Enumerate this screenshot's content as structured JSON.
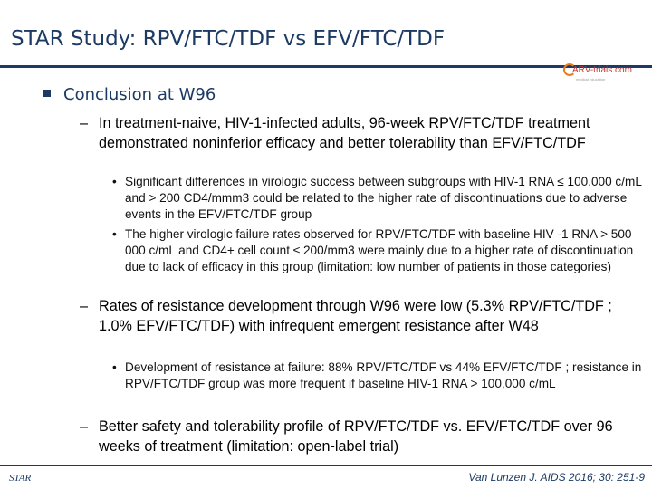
{
  "slide": {
    "title": "STAR Study: RPV/FTC/TDF vs EFV/FTC/TDF",
    "logo_text": "ARV-trials.com",
    "logo_tagline": "medical education",
    "section_heading": "Conclusion at W96",
    "points": [
      {
        "text": "In treatment-naive, HIV-1-infected adults, 96-week RPV/FTC/TDF treatment demonstrated noninferior efficacy and better tolerability than EFV/FTC/TDF",
        "subpoints": [
          "Significant differences in virologic success between subgroups with HIV-1 RNA ≤ 100,000 c/mL and > 200 CD4/mmm3 could be related to the higher rate of discontinuations due to adverse events in the EFV/FTC/TDF group",
          "The higher virologic failure rates observed for RPV/FTC/TDF with baseline HIV -1 RNA > 500 000 c/mL and CD4+ cell count ≤ 200/mm3 were mainly due to a higher rate of discontinuation due to lack of efficacy in this group (limitation: low number of patients in those categories)"
        ]
      },
      {
        "text": "Rates of resistance development through W96 were low (5.3% RPV/FTC/TDF ; 1.0% EFV/FTC/TDF) with infrequent emergent resistance after W48",
        "subpoints": [
          "Development of resistance at failure: 88% RPV/FTC/TDF vs 44% EFV/FTC/TDF ; resistance in RPV/FTC/TDF group was more frequent if baseline HIV-1 RNA > 100,000 c/mL"
        ]
      },
      {
        "text": "Better safety and tolerability profile of RPV/FTC/TDF vs. EFV/FTC/TDF over 96 weeks of treatment (limitation: open-label trial)",
        "subpoints": []
      }
    ],
    "footer_left": "STAR",
    "citation": "Van Lunzen J. AIDS 2016; 30: 251-9"
  }
}
